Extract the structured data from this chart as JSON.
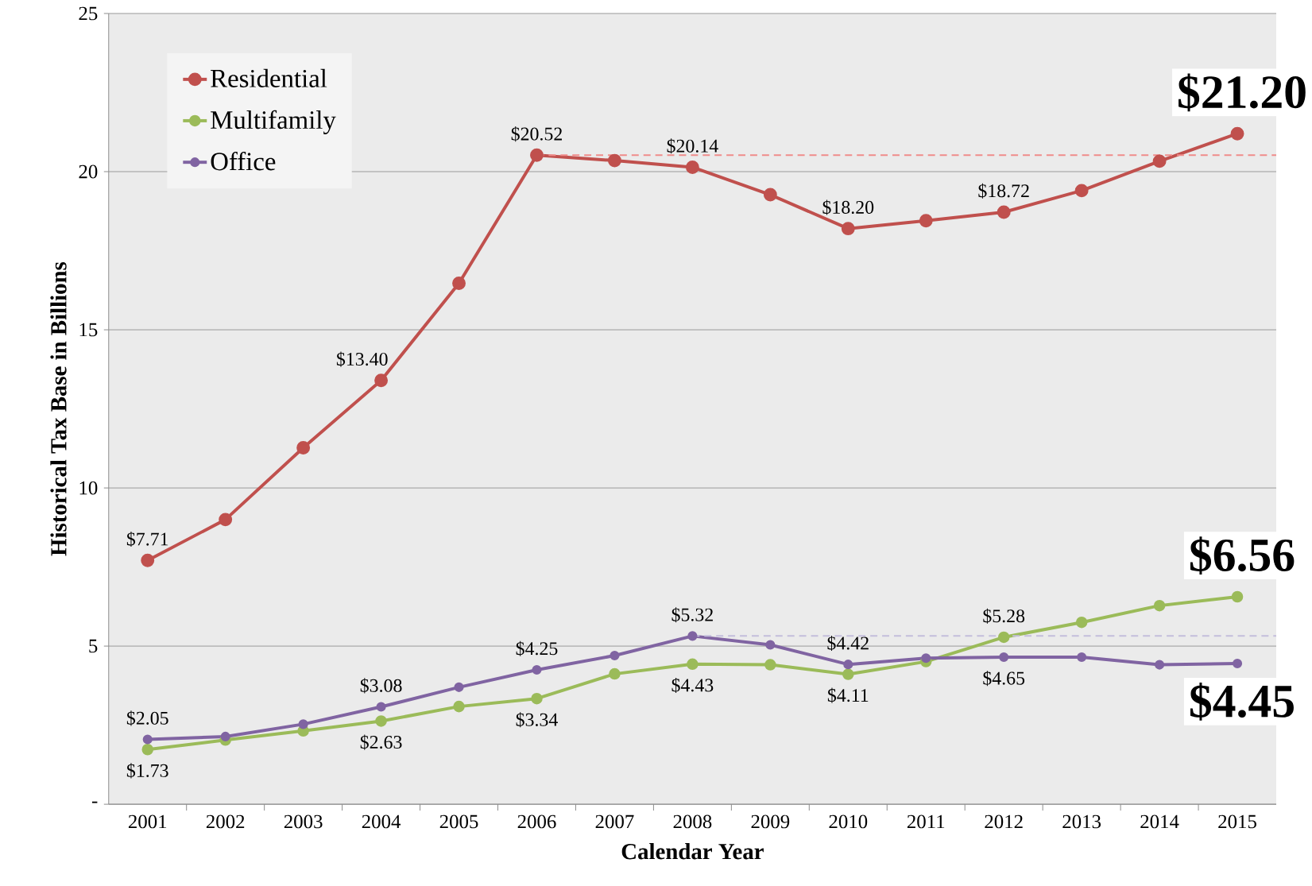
{
  "chart_data": {
    "type": "line",
    "xlabel": "Calendar Year",
    "ylabel": "Historical Tax Base in Billions",
    "categories": [
      "2001",
      "2002",
      "2003",
      "2004",
      "2005",
      "2006",
      "2007",
      "2008",
      "2009",
      "2010",
      "2011",
      "2012",
      "2013",
      "2014",
      "2015"
    ],
    "ylim": [
      0,
      25
    ],
    "yticks": [
      {
        "value": 0,
        "label": "-"
      },
      5,
      10,
      15,
      20,
      25
    ],
    "grid": "y",
    "legend": "top left",
    "marker": "circle",
    "line_style": "solid",
    "series": [
      {
        "name": "Residential",
        "color": "#c0504d",
        "values": [
          7.71,
          9.0,
          11.27,
          13.4,
          16.47,
          20.52,
          20.35,
          20.14,
          19.27,
          18.2,
          18.45,
          18.72,
          19.4,
          20.33,
          21.2
        ],
        "value_labels": [
          "$7.71",
          null,
          null,
          "$13.40",
          null,
          "$20.52",
          null,
          "$20.14",
          null,
          "$18.20",
          null,
          "$18.72",
          null,
          null,
          null
        ]
      },
      {
        "name": "Multifamily",
        "color": "#9bbb59",
        "values": [
          1.73,
          2.03,
          2.32,
          2.63,
          3.09,
          3.34,
          4.12,
          4.43,
          4.41,
          4.11,
          4.51,
          5.28,
          5.75,
          6.28,
          6.56
        ],
        "value_labels": [
          "$1.73",
          null,
          null,
          "$2.63",
          null,
          "$3.34",
          null,
          "$4.43",
          null,
          "$4.11",
          null,
          "$5.28",
          null,
          null,
          null
        ]
      },
      {
        "name": "Office",
        "color": "#8064a2",
        "values": [
          2.05,
          2.14,
          2.53,
          3.08,
          3.7,
          4.25,
          4.7,
          5.32,
          5.04,
          4.42,
          4.62,
          4.65,
          4.65,
          4.41,
          4.45
        ],
        "value_labels": [
          "$2.05",
          null,
          null,
          "$3.08",
          null,
          "$4.25",
          null,
          "$5.32",
          null,
          "$4.42",
          null,
          "$4.65",
          null,
          null,
          null
        ]
      }
    ],
    "ref_lines": [
      {
        "axis": "y",
        "value": 20.52,
        "label": null,
        "color": "#f08c8a",
        "line_style": "dashed"
      },
      {
        "axis": "y",
        "value": 5.32,
        "label": null,
        "color": "#c4bedc",
        "line_style": "dashed"
      }
    ],
    "annotations": [
      {
        "text": "**$21.20**",
        "x": "2015",
        "y": 21.2
      },
      {
        "text": "**$6.56**",
        "x": "2015",
        "y": 6.56
      },
      {
        "text": "**$4.45**",
        "x": "2015",
        "y": 4.45
      }
    ]
  }
}
